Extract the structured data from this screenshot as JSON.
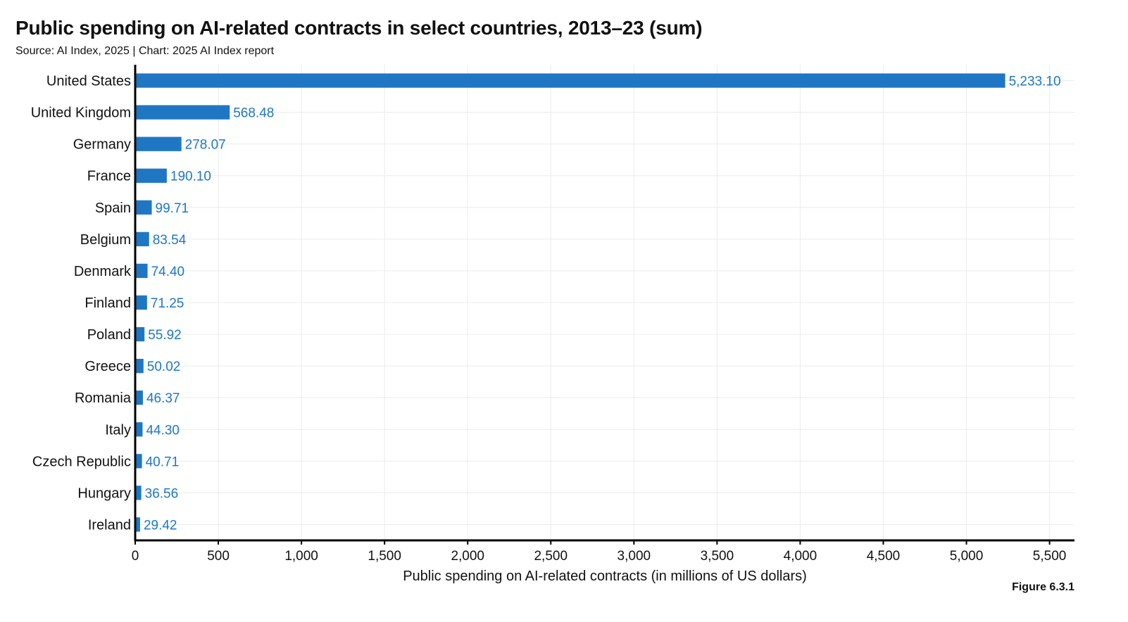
{
  "header": {
    "title": "Public spending on AI-related contracts in select countries, 2013–23 (sum)",
    "subtitle": "Source: AI Index, 2025 | Chart: 2025 AI Index report"
  },
  "footer": {
    "figure_label": "Figure 6.3.1"
  },
  "chart_data": {
    "type": "bar",
    "orientation": "horizontal",
    "title": "Public spending on AI-related contracts in select countries, 2013–23 (sum)",
    "xlabel": "Public spending on AI-related contracts (in millions of US dollars)",
    "ylabel": "",
    "categories": [
      "United States",
      "United Kingdom",
      "Germany",
      "France",
      "Spain",
      "Belgium",
      "Denmark",
      "Finland",
      "Poland",
      "Greece",
      "Romania",
      "Italy",
      "Czech Republic",
      "Hungary",
      "Ireland"
    ],
    "values": [
      5233.1,
      568.48,
      278.07,
      190.1,
      99.71,
      83.54,
      74.4,
      71.25,
      55.92,
      50.02,
      46.37,
      44.3,
      40.71,
      36.56,
      29.42
    ],
    "value_labels": [
      "5,233.10",
      "568.48",
      "278.07",
      "190.10",
      "99.71",
      "83.54",
      "74.40",
      "71.25",
      "55.92",
      "50.02",
      "46.37",
      "44.30",
      "40.71",
      "36.56",
      "29.42"
    ],
    "xlim": [
      0,
      5650
    ],
    "xticks": [
      0,
      500,
      1000,
      1500,
      2000,
      2500,
      3000,
      3500,
      4000,
      4500,
      5000,
      5500
    ],
    "xtick_labels": [
      "0",
      "500",
      "1,000",
      "1,500",
      "2,000",
      "2,500",
      "3,000",
      "3,500",
      "4,000",
      "4,500",
      "5,000",
      "5,500"
    ],
    "grid": true,
    "legend": "none",
    "bar_color": "#1f77c4",
    "label_color": "#1f77c4"
  }
}
